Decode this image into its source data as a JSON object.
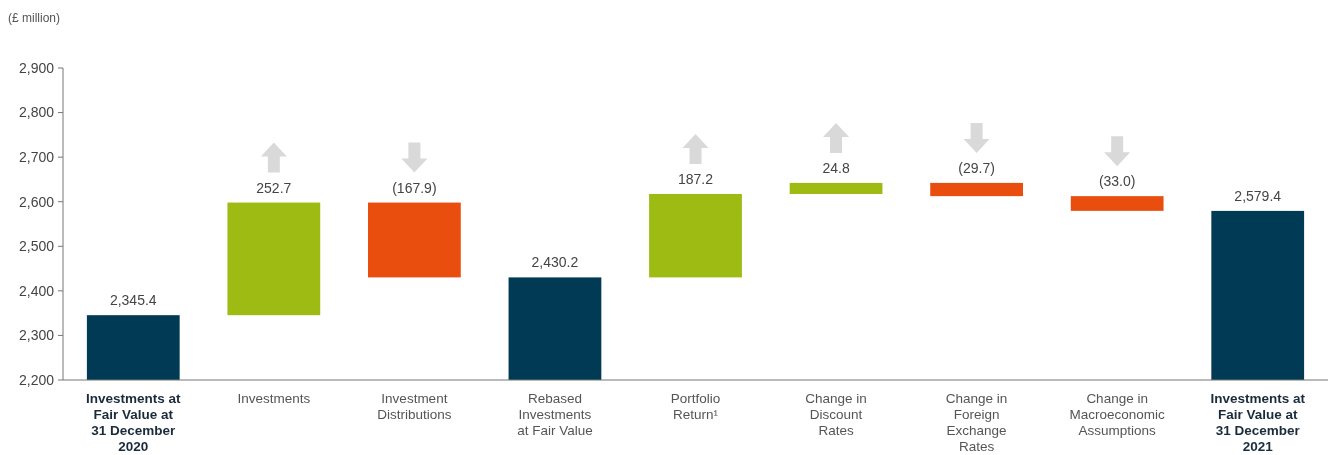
{
  "chart_data": {
    "type": "bar",
    "ylabel": "(£ million)",
    "categories": [
      "Investments at Fair Value at 31 December 2020",
      "Investments",
      "Investment Distributions",
      "Rebased Investments at Fair Value",
      "Portfolio Return¹",
      "Change in Discount Rates",
      "Change in Foreign Exchange Rates",
      "Change in Macroeconomic Assumptions",
      "Investments at Fair Value at 31 December 2021"
    ],
    "values": [
      2345.4,
      252.7,
      -167.9,
      2430.2,
      187.2,
      24.8,
      -29.7,
      -33.0,
      2579.4
    ],
    "base": [
      null,
      2345.4,
      2598.1,
      null,
      2430.2,
      2617.4,
      2642.2,
      2612.5,
      null
    ],
    "colors": [
      "#003a54",
      "#9dbb13",
      "#e94e0f",
      "#003a54",
      "#9dbb13",
      "#9dbb13",
      "#e94e0f",
      "#e94e0f",
      "#003a54"
    ],
    "value_labels": [
      "2,345.4",
      "252.7",
      "(167.9)",
      "2,430.2",
      "187.2",
      "24.8",
      "(29.7)",
      "(33.0)",
      "2,579.4"
    ],
    "ylim": [
      2200,
      2900
    ],
    "yticks": [
      {
        "value": 2200,
        "label": "2,200"
      },
      {
        "value": 2300,
        "label": "2,300"
      },
      {
        "value": 2400,
        "label": "2,400"
      },
      {
        "value": 2500,
        "label": "2,500"
      },
      {
        "value": 2600,
        "label": "2,600"
      },
      {
        "value": 2700,
        "label": "2,700"
      },
      {
        "value": 2800,
        "label": "2,800"
      },
      {
        "value": 2900,
        "label": "2,900"
      }
    ],
    "grid": false
  }
}
